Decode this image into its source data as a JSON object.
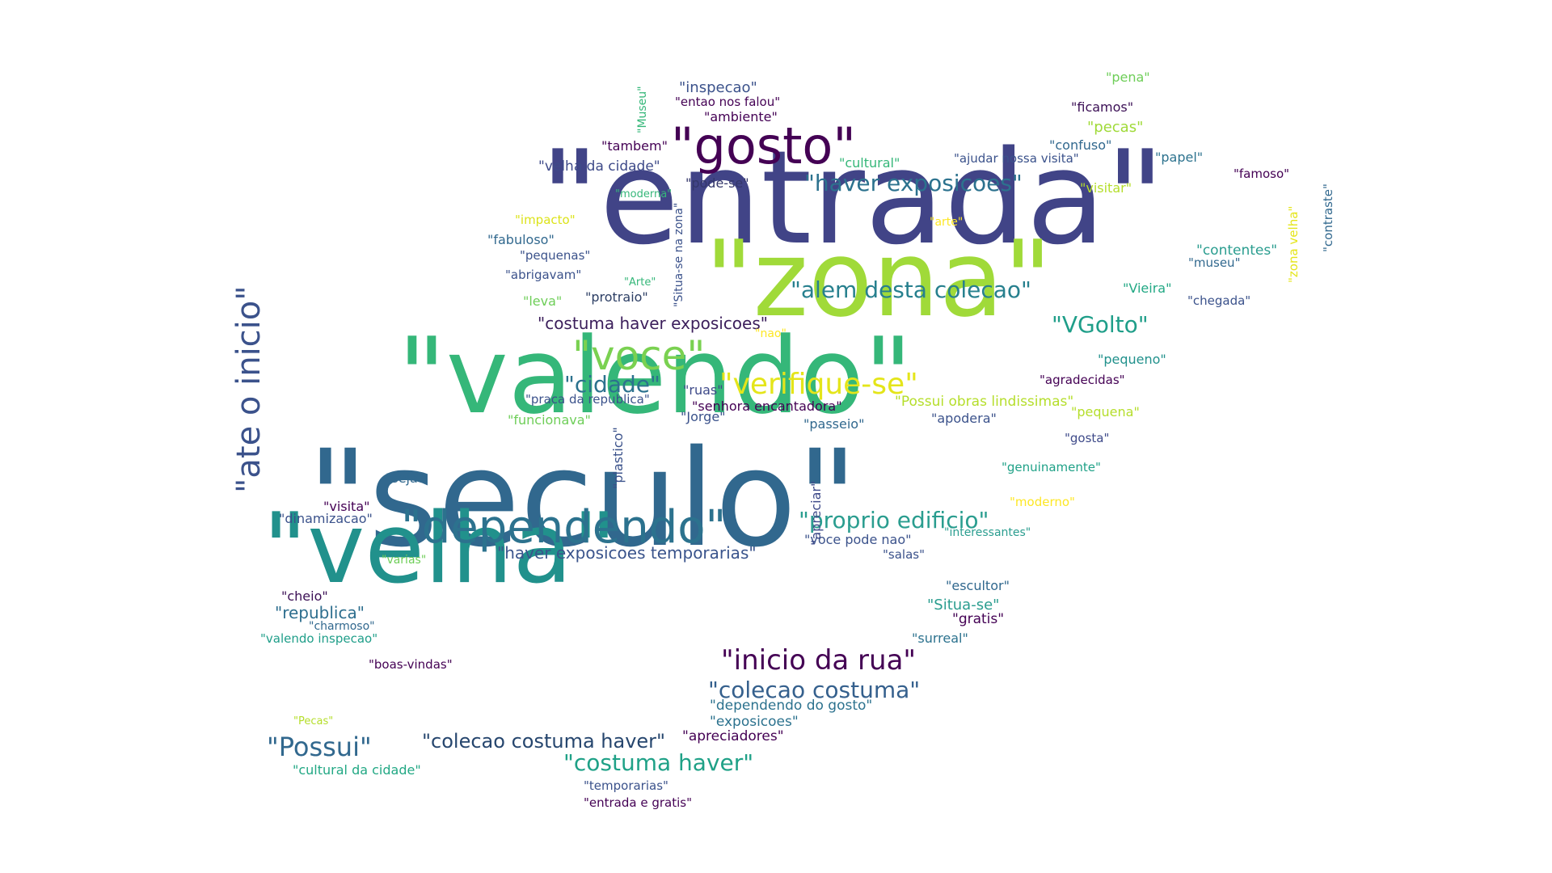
{
  "words": [
    {
      "text": "\"entrada\"",
      "color": "#414487"
    },
    {
      "text": "\"seculo\"",
      "color": "#31688e"
    },
    {
      "text": "\"valendo\"",
      "color": "#35b779"
    },
    {
      "text": "\"zona\"",
      "color": "#a0da39"
    },
    {
      "text": "\"velha\"",
      "color": "#21918c"
    },
    {
      "text": "\"gosto\"",
      "color": "#440154"
    },
    {
      "text": "\"dependendo\"",
      "color": "#2c728e"
    },
    {
      "text": "\"voce\"",
      "color": "#7ad151"
    },
    {
      "text": "\"ate o inicio\"",
      "color": "#3b528b"
    },
    {
      "text": "\"inicio da rua\"",
      "color": "#440154"
    },
    {
      "text": "\"verifique-se\"",
      "color": "#e4e51a"
    },
    {
      "text": "\"Possui\"",
      "color": "#31688e"
    },
    {
      "text": "\"proprio edificio\"",
      "color": "#2a9d8f"
    },
    {
      "text": "\"haver exposicoes\"",
      "color": "#2c728e"
    },
    {
      "text": "\"alem desta colecao\"",
      "color": "#27808e"
    },
    {
      "text": "\"colecao costuma\"",
      "color": "#35608d"
    },
    {
      "text": "\"costuma haver\"",
      "color": "#1fa187"
    },
    {
      "text": "\"colecao costuma haver\"",
      "color": "#26466e"
    },
    {
      "text": "\"VGolto\"",
      "color": "#1f9e89"
    },
    {
      "text": "\"cidade\"",
      "color": "#2c728e"
    },
    {
      "text": "\"haver exposicoes temporarias\"",
      "color": "#3a548c"
    },
    {
      "text": "\"costuma haver exposicoes\"",
      "color": "#3b1e5b"
    },
    {
      "text": "\"republica\"",
      "color": "#2d6e8e"
    },
    {
      "text": "\"inspecao\"",
      "color": "#3b528b"
    },
    {
      "text": "\"velha da cidade\"",
      "color": "#3e4a89"
    },
    {
      "text": "\"pode-se\"",
      "color": "#34376b"
    },
    {
      "text": "\"protraio\"",
      "color": "#2c3e64"
    },
    {
      "text": "\"cultural\"",
      "color": "#35b779"
    },
    {
      "text": "\"ajudar nossa visita\"",
      "color": "#3b528b"
    },
    {
      "text": "\"confuso\"",
      "color": "#31688e"
    },
    {
      "text": "\"papel\"",
      "color": "#2c728e"
    },
    {
      "text": "\"ficamos\"",
      "color": "#3b0f55"
    },
    {
      "text": "\"pecas\"",
      "color": "#a0da39"
    },
    {
      "text": "\"pena\"",
      "color": "#6ece58"
    },
    {
      "text": "\"famoso\"",
      "color": "#440154"
    },
    {
      "text": "\"visitar\"",
      "color": "#b5de2b"
    },
    {
      "text": "\"contentes\"",
      "color": "#2a9d8f"
    },
    {
      "text": "\"museu\"",
      "color": "#31688e"
    },
    {
      "text": "\"Vieira\"",
      "color": "#22a884"
    },
    {
      "text": "\"chegada\"",
      "color": "#3b528b"
    },
    {
      "text": "\"pequeno\"",
      "color": "#21918c"
    },
    {
      "text": "\"agradecidas\"",
      "color": "#440154"
    },
    {
      "text": "\"pequena\"",
      "color": "#b5de2b"
    },
    {
      "text": "\"Possui obras lindissimas\"",
      "color": "#b5de2b"
    },
    {
      "text": "\"gosta\"",
      "color": "#3e4a89"
    },
    {
      "text": "\"apodera\"",
      "color": "#3b528b"
    },
    {
      "text": "\"genuinamente\"",
      "color": "#1fa187"
    },
    {
      "text": "\"moderno\"",
      "color": "#fde725"
    },
    {
      "text": "\"interessantes\"",
      "color": "#2a9d8f"
    },
    {
      "text": "\"salas\"",
      "color": "#3b528b"
    },
    {
      "text": "\"escultor\"",
      "color": "#31688e"
    },
    {
      "text": "\"Situa-se\"",
      "color": "#2a9d8f"
    },
    {
      "text": "\"gratis\"",
      "color": "#440154"
    },
    {
      "text": "\"surreal\"",
      "color": "#2c728e"
    },
    {
      "text": "\"voce pode nao\"",
      "color": "#3b528b"
    },
    {
      "text": "\"apreciar\"",
      "color": "#3e4a89"
    },
    {
      "text": "\"dependendo do gosto\"",
      "color": "#2c728e"
    },
    {
      "text": "\"exposicoes\"",
      "color": "#2c728e"
    },
    {
      "text": "\"apreciadores\"",
      "color": "#440154"
    },
    {
      "text": "\"temporarias\"",
      "color": "#3b528b"
    },
    {
      "text": "\"entrada e gratis\"",
      "color": "#440154"
    },
    {
      "text": "\"cultural da cidade\"",
      "color": "#22a884"
    },
    {
      "text": "\"Pecas\"",
      "color": "#b5de2b"
    },
    {
      "text": "\"boas-vindas\"",
      "color": "#440154"
    },
    {
      "text": "\"valendo inspecao\"",
      "color": "#1f9e89"
    },
    {
      "text": "\"charmoso\"",
      "color": "#31688e"
    },
    {
      "text": "\"cheio\"",
      "color": "#3b0f55"
    },
    {
      "text": "\"varias\"",
      "color": "#6ece58"
    },
    {
      "text": "\"dinamizacao\"",
      "color": "#3b528b"
    },
    {
      "text": "\"visita\"",
      "color": "#440154"
    },
    {
      "text": "\"seja\"",
      "color": "#31688e"
    },
    {
      "text": "\"funcionava\"",
      "color": "#6ece58"
    },
    {
      "text": "\"praca da republica\"",
      "color": "#3b528b"
    },
    {
      "text": "\"ruas\"",
      "color": "#3e4a89"
    },
    {
      "text": "\"senhora encantadora\"",
      "color": "#440154"
    },
    {
      "text": "\"Jorge\"",
      "color": "#3b528b"
    },
    {
      "text": "\"passeio\"",
      "color": "#31688e"
    },
    {
      "text": "\"plastico\"",
      "color": "#3b528b"
    },
    {
      "text": "\"nao\"",
      "color": "#fde725"
    },
    {
      "text": "\"leva\"",
      "color": "#6ece58"
    },
    {
      "text": "\"abrigavam\"",
      "color": "#3b528b"
    },
    {
      "text": "\"Arte\"",
      "color": "#35b779"
    },
    {
      "text": "\"pequenas\"",
      "color": "#3b528b"
    },
    {
      "text": "\"fabuloso\"",
      "color": "#31688e"
    },
    {
      "text": "\"impacto\"",
      "color": "#dce319"
    },
    {
      "text": "\"moderna\"",
      "color": "#35b779"
    },
    {
      "text": "\"Situa-se na zona\"",
      "color": "#3b528b"
    },
    {
      "text": "\"tambem\"",
      "color": "#440154"
    },
    {
      "text": "\"Museu\"",
      "color": "#35b779"
    },
    {
      "text": "\"entao nos falou\"",
      "color": "#440154"
    },
    {
      "text": "\"ambiente\"",
      "color": "#440154"
    },
    {
      "text": "\"arte\"",
      "color": "#fde725"
    },
    {
      "text": "\"zona velha\"",
      "color": "#e4e51a"
    },
    {
      "text": "\"contraste\"",
      "color": "#31688e"
    }
  ]
}
